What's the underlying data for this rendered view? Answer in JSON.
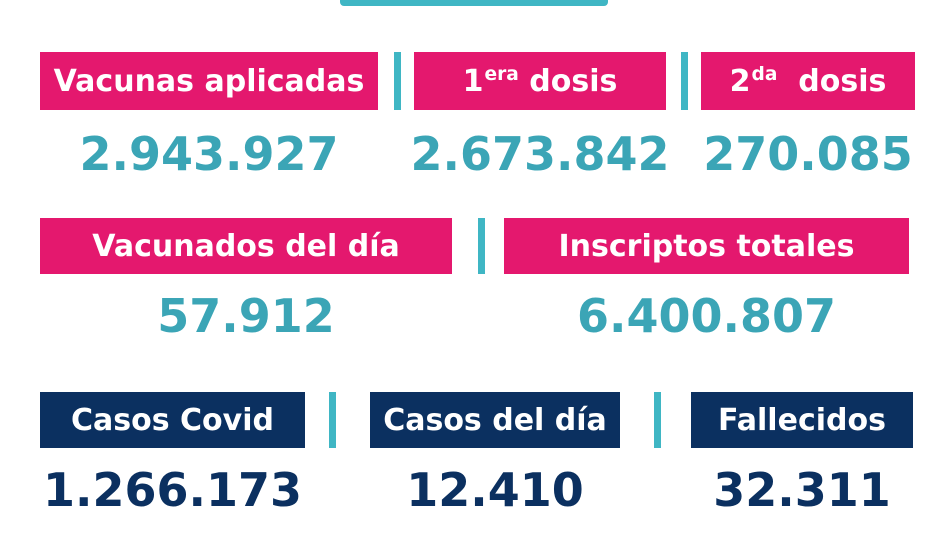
{
  "vacunas": {
    "aplicadas": {
      "label": "Vacunas aplicadas",
      "value": "2.943.927"
    },
    "primera": {
      "label_main": "1",
      "label_sup": "era",
      "label_rest": " dosis",
      "value": "2.673.842"
    },
    "segunda": {
      "label_main": "2",
      "label_sup": "da",
      "label_rest": "  dosis",
      "value": "270.085"
    }
  },
  "vacunados": {
    "del_dia": {
      "label": "Vacunados del día",
      "value": "57.912"
    },
    "inscriptos": {
      "label": "Inscriptos totales",
      "value": "6.400.807"
    }
  },
  "covid": {
    "casos": {
      "label": "Casos Covid",
      "value": "1.266.173"
    },
    "casos_dia": {
      "label": "Casos del día",
      "value": "12.410"
    },
    "fallecidos": {
      "label": "Fallecidos",
      "value": "32.311"
    }
  },
  "colors": {
    "pink": "#e4186e",
    "navy": "#0b3060",
    "teal": "#3ba5b6"
  }
}
